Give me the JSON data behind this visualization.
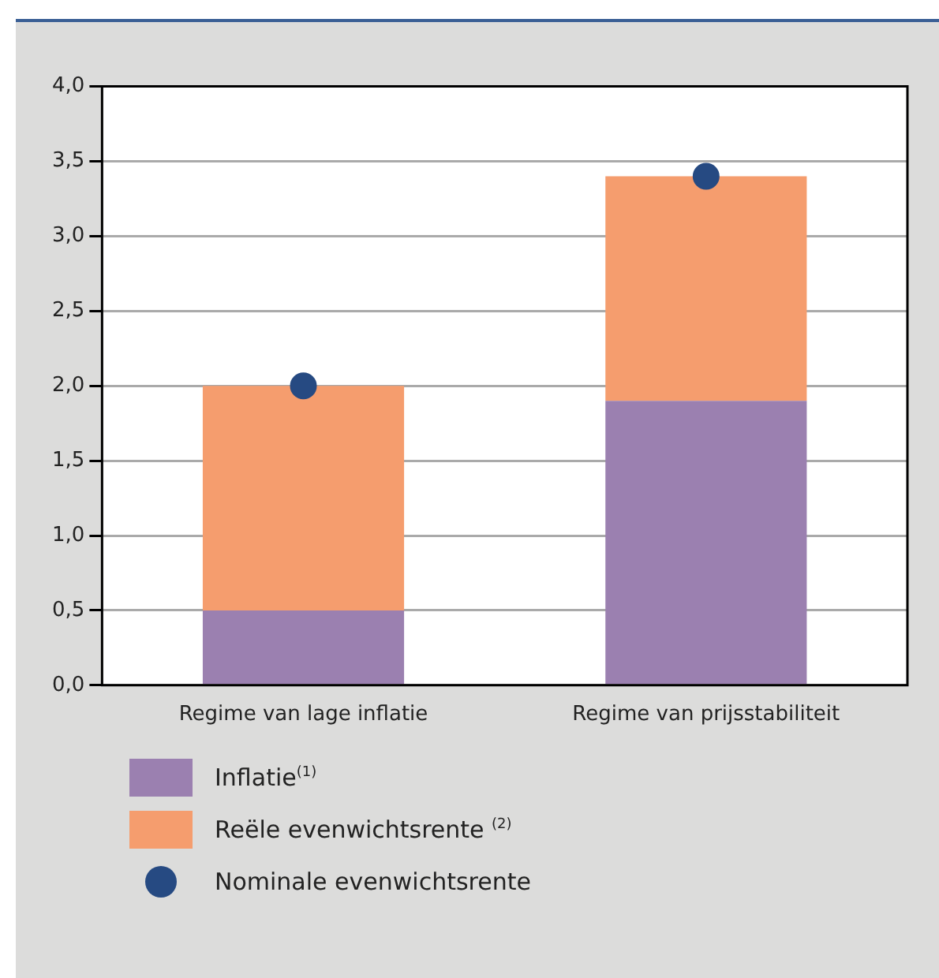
{
  "chart_data": {
    "type": "bar",
    "stacked": true,
    "categories": [
      "Regime van lage inflatie",
      "Regime van prijsstabiliteit"
    ],
    "series": [
      {
        "name": "Inflatie$^{(1)}$",
        "color": "#9b80b0",
        "values": [
          0.5,
          1.9
        ]
      },
      {
        "name": "Reële evenwichtsrente $^{(2)}$",
        "color": "#f59d6e",
        "values": [
          1.5,
          1.5
        ]
      },
      {
        "name": "Nominale evenwichtsrente",
        "type": "scatter",
        "color": "#264a82",
        "x": [
          "Regime van lage inflatie",
          "Regime van prijsstabiliteit"
        ],
        "values": [
          2.0,
          3.4
        ]
      }
    ],
    "ylim": [
      0,
      4
    ],
    "yticks": [
      {
        "value": 0,
        "label": "0,0"
      },
      {
        "value": 0.5,
        "label": "0,5"
      },
      {
        "value": 1,
        "label": "1,0"
      },
      {
        "value": 1.5,
        "label": "1,5"
      },
      {
        "value": 2,
        "label": "2,0"
      },
      {
        "value": 2.5,
        "label": "2,5"
      },
      {
        "value": 3,
        "label": "3,0"
      },
      {
        "value": 3.5,
        "label": "3,5"
      },
      {
        "value": 4,
        "label": "4,0"
      }
    ],
    "grid": "y",
    "legend": "bottom",
    "marker": "circle"
  }
}
